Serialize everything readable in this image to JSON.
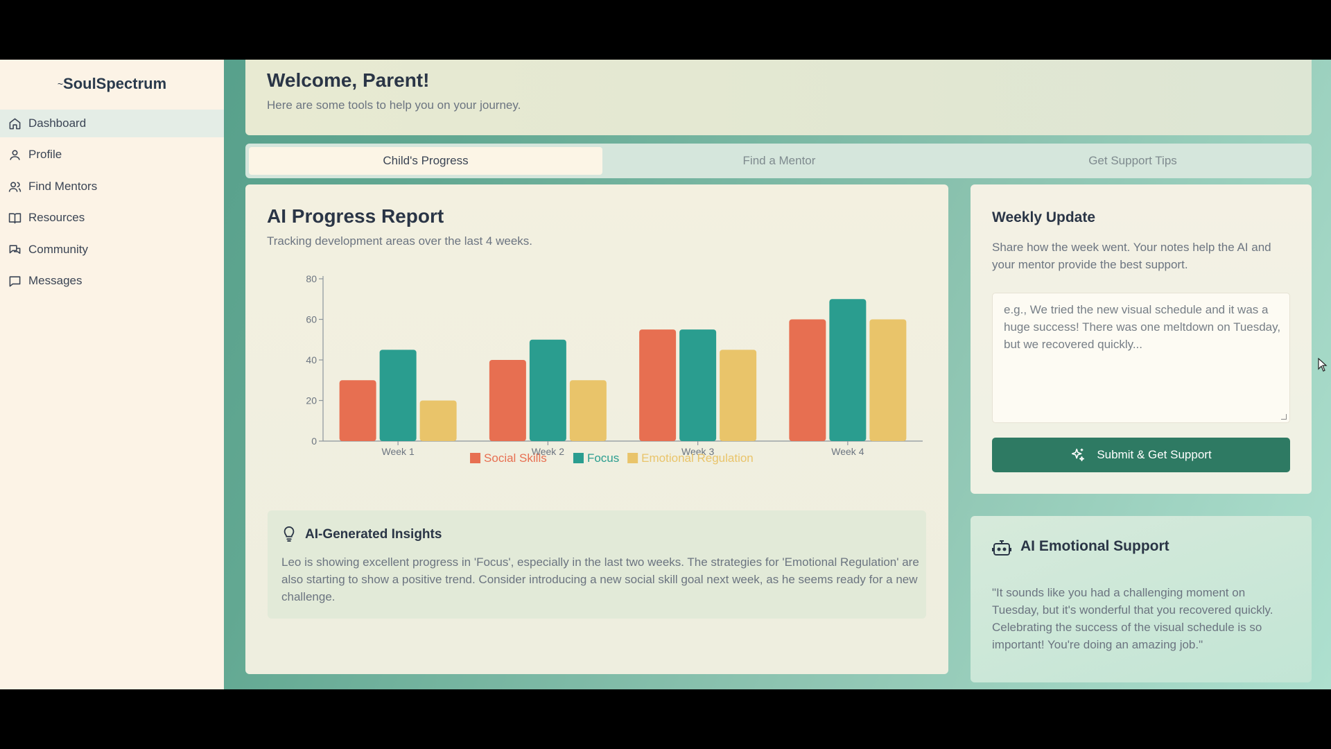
{
  "app": {
    "name": "SoulSpectrum"
  },
  "sidebar": {
    "items": [
      {
        "label": "Dashboard",
        "icon": "home-icon",
        "active": true
      },
      {
        "label": "Profile",
        "icon": "user-icon"
      },
      {
        "label": "Find Mentors",
        "icon": "users-icon"
      },
      {
        "label": "Resources",
        "icon": "book-icon"
      },
      {
        "label": "Community",
        "icon": "chat-icon"
      },
      {
        "label": "Messages",
        "icon": "message-icon"
      }
    ]
  },
  "welcome": {
    "title": "Welcome, Parent!",
    "subtitle": "Here are some tools to help you on your journey."
  },
  "tabs": [
    {
      "label": "Child's Progress",
      "active": true
    },
    {
      "label": "Find a Mentor"
    },
    {
      "label": "Get Support Tips"
    }
  ],
  "progress": {
    "title": "AI Progress Report",
    "subtitle": "Tracking development areas over the last 4 weeks."
  },
  "chart_data": {
    "type": "bar",
    "categories": [
      "Week 1",
      "Week 2",
      "Week 3",
      "Week 4"
    ],
    "series": [
      {
        "name": "Social Skills",
        "values": [
          30,
          40,
          55,
          60
        ],
        "color": "#e76f51"
      },
      {
        "name": "Focus",
        "values": [
          45,
          50,
          55,
          70
        ],
        "color": "#2a9d8f"
      },
      {
        "name": "Emotional Regulation",
        "values": [
          20,
          30,
          45,
          60
        ],
        "color": "#e9c46a"
      }
    ],
    "ylim": [
      0,
      80
    ],
    "yticks": [
      "0",
      "20",
      "40",
      "60",
      "80"
    ],
    "legend": "bottom"
  },
  "insights": {
    "title": "AI-Generated Insights",
    "body": "Leo is showing excellent progress in 'Focus', especially in the last two weeks. The strategies for 'Emotional Regulation' are also starting to show a positive trend. Consider introducing a new social skill goal next week, as he seems ready for a new challenge."
  },
  "weekly": {
    "title": "Weekly Update",
    "description": "Share how the week went. Your notes help the AI and your mentor provide the best support.",
    "placeholder": "e.g., We tried the new visual schedule and it was a huge success! There was one meltdown on Tuesday, but we recovered quickly...",
    "button": "Submit & Get Support"
  },
  "emotional": {
    "title": "AI Emotional Support",
    "quote": "\"It sounds like you had a challenging moment on Tuesday, but it's wonderful that you recovered quickly. Celebrating the success of the visual schedule is so important! You're doing an amazing job.\""
  },
  "colors": {
    "primary": "#2e7a63",
    "sidebar_bg": "#fcf3e6",
    "card_bg": "#f2eedd"
  }
}
